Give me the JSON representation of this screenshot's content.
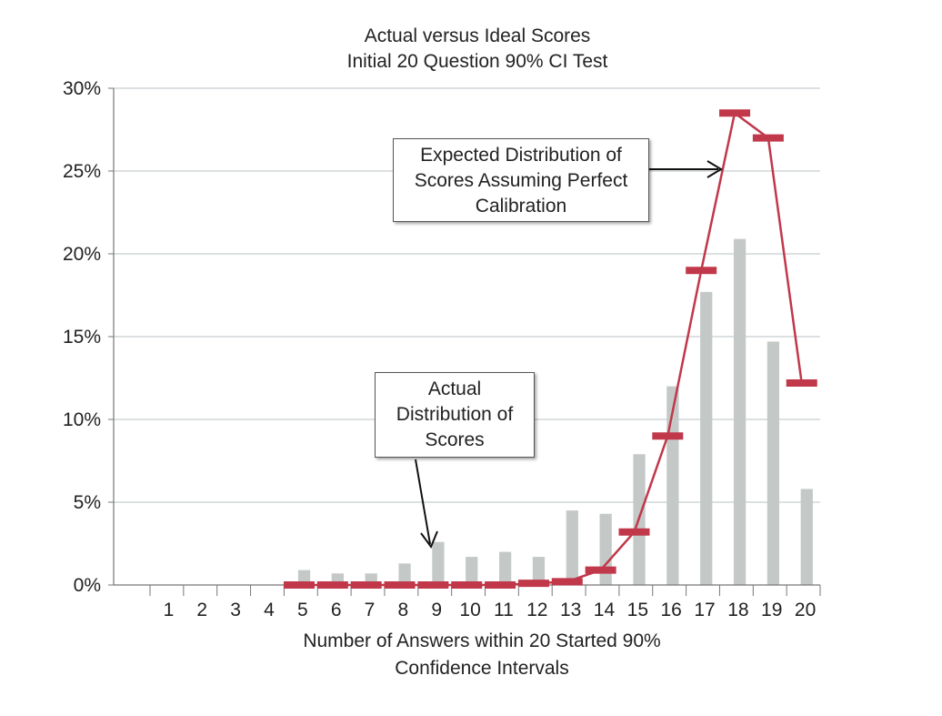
{
  "chart_data": {
    "type": "bar+line",
    "title": "Actual versus Ideal Scores",
    "subtitle": "Initial 20 Question 90% CI Test",
    "xlabel": "Number of Answers within 20 Started 90% Confidence Intervals",
    "xlabel_line1": "Number of Answers within 20 Started 90%",
    "xlabel_line2": "Confidence Intervals",
    "ylabel": "",
    "ylim": [
      0,
      30
    ],
    "yticks": [
      "0%",
      "5%",
      "10%",
      "15%",
      "20%",
      "25%",
      "30%"
    ],
    "categories": [
      "1",
      "2",
      "3",
      "4",
      "5",
      "6",
      "7",
      "8",
      "9",
      "10",
      "11",
      "12",
      "13",
      "14",
      "15",
      "16",
      "17",
      "18",
      "19",
      "20"
    ],
    "series": [
      {
        "name": "Actual Distribution of Scores",
        "kind": "bar",
        "color": "#c4c9c8",
        "values": [
          0,
          0,
          0,
          0,
          0.9,
          0.7,
          0.7,
          1.3,
          2.6,
          1.7,
          2.0,
          1.7,
          4.5,
          4.3,
          7.9,
          12.0,
          17.7,
          20.9,
          14.7,
          5.8
        ]
      },
      {
        "name": "Expected Distribution of Scores Assuming Perfect Calibration",
        "kind": "line",
        "color": "#c0384a",
        "start_index": 4,
        "values": [
          null,
          null,
          null,
          null,
          0,
          0,
          0,
          0,
          0,
          0,
          0,
          0.1,
          0.2,
          0.9,
          3.2,
          9.0,
          19.0,
          28.5,
          27.0,
          12.2
        ]
      }
    ],
    "annotations": {
      "expected": [
        "Expected Distribution of",
        "Scores Assuming Perfect",
        "Calibration"
      ],
      "actual": [
        "Actual",
        "Distribution of",
        "Scores"
      ]
    }
  }
}
